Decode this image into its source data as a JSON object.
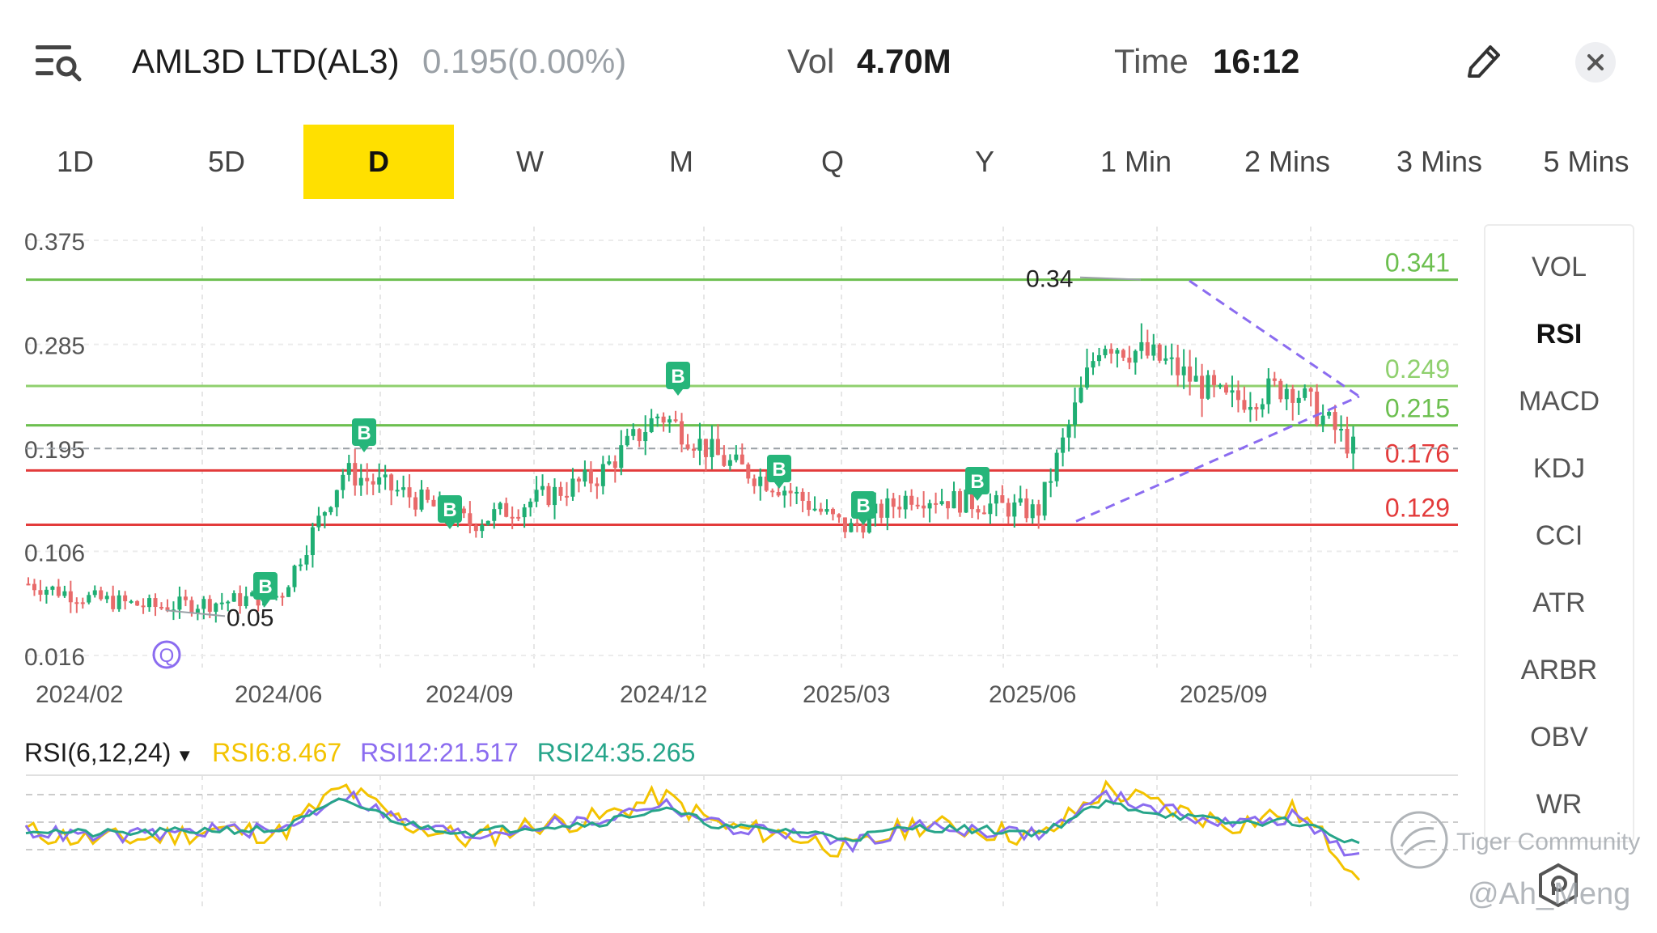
{
  "header": {
    "title": "AML3D LTD(AL3)",
    "price": "0.195(0.00%)",
    "vol_label": "Vol",
    "vol_value": "4.70M",
    "time_label": "Time",
    "time_value": "16:12"
  },
  "tabs": [
    "1D",
    "5D",
    "D",
    "W",
    "M",
    "Q",
    "Y",
    "1 Min",
    "2 Mins",
    "3 Mins",
    "5 Mins"
  ],
  "active_tab": "D",
  "indicators": [
    "VOL",
    "RSI",
    "MACD",
    "KDJ",
    "CCI",
    "ATR",
    "ARBR",
    "OBV",
    "WR"
  ],
  "active_indicator": "RSI",
  "rsi_legend": {
    "name": "RSI(6,12,24)",
    "dropdown_icon": "caret-down-icon",
    "rsi6": "RSI6:8.467",
    "rsi12": "RSI12:21.517",
    "rsi24": "RSI24:35.265"
  },
  "watermark": {
    "brand": "Tiger Community",
    "handle": "@Ah_Meng"
  },
  "colors": {
    "accent_tab": "#ffe000",
    "up": "#1fae73",
    "down": "#e86a6a",
    "green_line": "#6cbf4f",
    "red_line": "#e33b3b",
    "rsi6": "#f3c300",
    "rsi12": "#8b6cf0",
    "rsi24": "#27a58a",
    "buy_marker": "#26b57a"
  },
  "chart_data": [
    {
      "type": "candlestick",
      "y_ticks": [
        "0.375",
        "0.285",
        "0.195",
        "0.106",
        "0.016"
      ],
      "x_ticks": [
        "2024/02",
        "2024/06",
        "2024/09",
        "2024/12",
        "2025/03",
        "2025/06",
        "2025/09"
      ],
      "levels": [
        {
          "label": "0.341",
          "value": 0.341,
          "color": "#6cbf4f"
        },
        {
          "label": "0.249",
          "value": 0.249,
          "color": "#8fd06e"
        },
        {
          "label": "0.215",
          "value": 0.215,
          "color": "#6cbf4f"
        },
        {
          "label": "0.176",
          "value": 0.176,
          "color": "#e33b3b"
        },
        {
          "label": "0.129",
          "value": 0.129,
          "color": "#e33b3b"
        }
      ],
      "current_price_line": 0.195,
      "annotations": [
        {
          "label": "0.34",
          "x": "2025/07",
          "value": 0.34
        },
        {
          "label": "0.05",
          "x": "2024/03",
          "value": 0.05
        }
      ],
      "buy_markers": [
        "2024/05",
        "2024/07",
        "2024/08",
        "2024/12",
        "2025/01",
        "2025/03",
        "2025/05"
      ],
      "buy_marker_label": "B",
      "event_marker_label": "Q",
      "series": [
        {
          "x": "2024/02",
          "close": 0.078
        },
        {
          "x": "2024/03",
          "close": 0.065
        },
        {
          "x": "2024/04",
          "close": 0.058
        },
        {
          "x": "2024/05",
          "close": 0.062
        },
        {
          "x": "2024/06",
          "close": 0.068
        },
        {
          "x": "2024/07",
          "close": 0.175
        },
        {
          "x": "2024/08",
          "close": 0.155
        },
        {
          "x": "2024/09",
          "close": 0.13
        },
        {
          "x": "2024/10",
          "close": 0.15
        },
        {
          "x": "2024/11",
          "close": 0.17
        },
        {
          "x": "2024/12",
          "close": 0.225
        },
        {
          "x": "2025/01",
          "close": 0.185
        },
        {
          "x": "2025/02",
          "close": 0.16
        },
        {
          "x": "2025/03",
          "close": 0.125
        },
        {
          "x": "2025/04",
          "close": 0.155
        },
        {
          "x": "2025/05",
          "close": 0.148
        },
        {
          "x": "2025/06",
          "close": 0.14
        },
        {
          "x": "2025/07",
          "close": 0.29
        },
        {
          "x": "2025/08",
          "close": 0.27
        },
        {
          "x": "2025/09",
          "close": 0.235
        },
        {
          "x": "2025/10",
          "close": 0.25
        },
        {
          "x": "2025/11",
          "close": 0.195
        }
      ]
    },
    {
      "type": "line",
      "title": "RSI(6,12,24)",
      "series": [
        {
          "name": "RSI6",
          "values": [
            48,
            40,
            42,
            50,
            46,
            90,
            55,
            40,
            55,
            60,
            82,
            52,
            45,
            30,
            55,
            50,
            42,
            88,
            70,
            55,
            68,
            8.467
          ]
        },
        {
          "name": "RSI12",
          "values": [
            49,
            43,
            45,
            50,
            48,
            85,
            55,
            44,
            54,
            58,
            76,
            52,
            47,
            36,
            53,
            50,
            45,
            82,
            68,
            55,
            62,
            21.517
          ]
        },
        {
          "name": "RSI24",
          "values": [
            50,
            46,
            47,
            50,
            49,
            78,
            55,
            47,
            53,
            56,
            70,
            52,
            49,
            42,
            52,
            50,
            47,
            75,
            64,
            56,
            58,
            35.265
          ]
        }
      ]
    }
  ]
}
